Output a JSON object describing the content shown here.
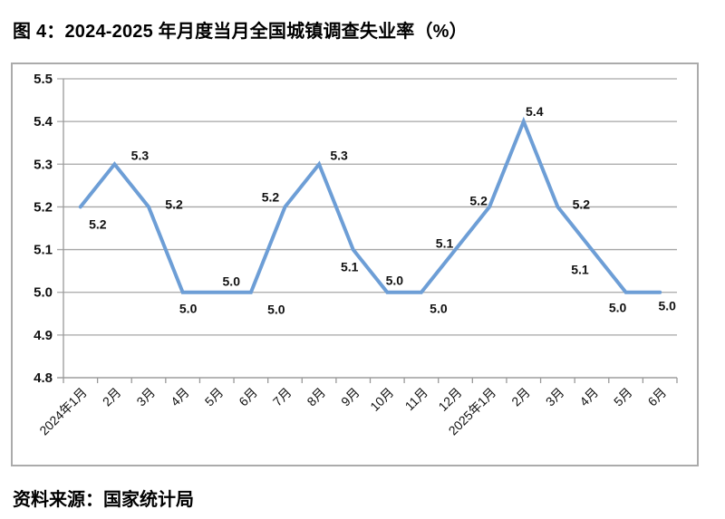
{
  "figure": {
    "title": "图 4：2024-2025 年月度当月全国城镇调查失业率（%）",
    "source": "资料来源：国家统计局"
  },
  "chart_data": {
    "type": "line",
    "title": "图 4：2024-2025 年月度当月全国城镇调查失业率（%）",
    "categories": [
      "2024年1月",
      "2月",
      "3月",
      "4月",
      "5月",
      "6月",
      "7月",
      "8月",
      "9月",
      "10月",
      "11月",
      "12月",
      "2025年1月",
      "2月",
      "3月",
      "4月",
      "5月",
      "6月"
    ],
    "series": [
      {
        "name": "当月全国城镇调查失业率",
        "values": [
          5.2,
          5.3,
          5.2,
          5.0,
          5.0,
          5.0,
          5.2,
          5.3,
          5.1,
          5.0,
          5.0,
          5.1,
          5.2,
          5.4,
          5.2,
          5.1,
          5.0,
          5.0
        ]
      }
    ],
    "data_labels": [
      "5.2",
      "5.3",
      "5.2",
      "5.0",
      "5.0",
      "5.0",
      "5.2",
      "5.3",
      "5.1",
      "5.0",
      "5.0",
      "5.1",
      "5.2",
      "5.4",
      "5.2",
      "5.1",
      "5.0",
      "5.0"
    ],
    "xlabel": "",
    "ylabel": "",
    "ylim": [
      4.8,
      5.5
    ],
    "yticks": [
      4.8,
      4.9,
      5.0,
      5.1,
      5.2,
      5.3,
      5.4,
      5.5
    ],
    "grid": true,
    "legend_position": "none",
    "colors": {
      "line": "#6d9ed6",
      "gridline": "#a6a6a6",
      "axis": "#999999",
      "frame_border": "#ababab",
      "text": "#111111"
    }
  }
}
